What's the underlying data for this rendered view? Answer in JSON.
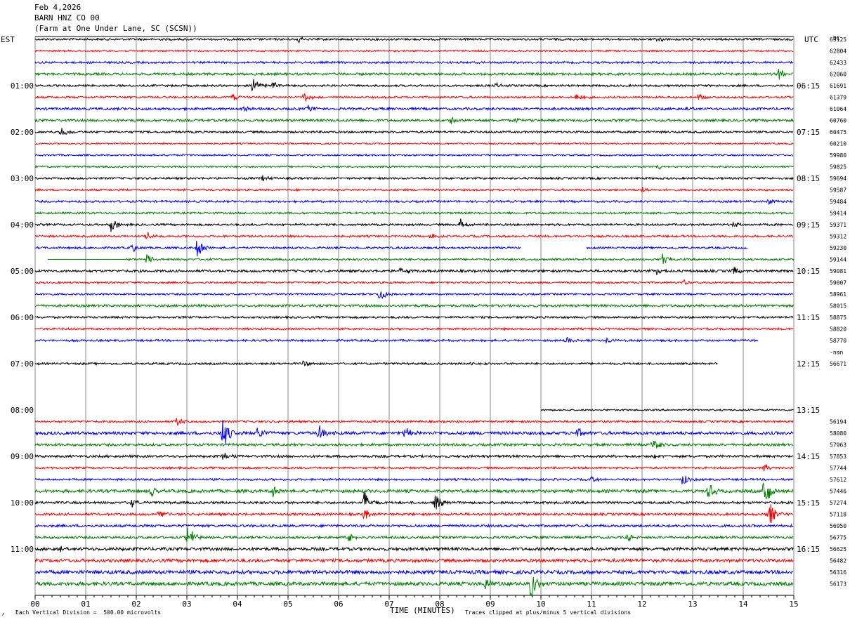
{
  "header": {
    "date": "Feb 4,2026",
    "station": "BARN HNZ CO 00",
    "location": "(Farm at One Under Lane, SC (SCSN))"
  },
  "left_label": "EST",
  "right_label": "UTC",
  "dc_label": "DC",
  "footer": {
    "division": "Each Vertical Division =  500.00 microvolts",
    "xlabel": "TIME (MINUTES)",
    "clip_note": "Traces clipped at plus/minus 5 vertical divisions"
  },
  "chart_data": {
    "type": "line",
    "title": "BARN HNZ CO 00",
    "xlabel": "TIME (MINUTES)",
    "xlim": [
      0,
      15
    ],
    "x_ticks": [
      "00",
      "01",
      "02",
      "03",
      "04",
      "05",
      "06",
      "07",
      "08",
      "09",
      "10",
      "11",
      "12",
      "13",
      "14",
      "15"
    ],
    "trace_colors": [
      "#000000",
      "#ff0000",
      "#0000ff",
      "#008000"
    ],
    "left_time_labels": [
      "01:00",
      "02:00",
      "03:00",
      "04:00",
      "05:00",
      "06:00",
      "07:00",
      "08:00",
      "09:00",
      "10:00",
      "11:00"
    ],
    "right_time_labels": [
      "06:15",
      "07:15",
      "08:15",
      "09:15",
      "10:15",
      "11:15",
      "12:15",
      "13:15",
      "14:15",
      "15:15",
      "16:15"
    ],
    "traces": [
      {
        "dc": "63125",
        "color": "#000000",
        "start": 0,
        "end": 15,
        "noise": 1.0,
        "events": [
          [
            5.2,
            2
          ],
          [
            12.3,
            2
          ]
        ]
      },
      {
        "dc": "62804",
        "color": "#ff0000",
        "start": 0,
        "end": 15,
        "noise": 0.8,
        "events": []
      },
      {
        "dc": "62433",
        "color": "#0000ff",
        "start": 0,
        "end": 15,
        "noise": 1.0,
        "events": []
      },
      {
        "dc": "62060",
        "color": "#008000",
        "start": 0,
        "end": 15,
        "noise": 1.2,
        "events": [
          [
            14.7,
            4
          ]
        ]
      },
      {
        "dc": "61691",
        "color": "#000000",
        "start": 0,
        "end": 15,
        "noise": 1.0,
        "events": [
          [
            4.3,
            6
          ],
          [
            4.7,
            3
          ],
          [
            9.1,
            2
          ]
        ]
      },
      {
        "dc": "61379",
        "color": "#ff0000",
        "start": 0,
        "end": 15,
        "noise": 1.0,
        "events": [
          [
            5.3,
            4
          ],
          [
            3.9,
            3
          ],
          [
            10.7,
            3
          ],
          [
            13.1,
            2
          ]
        ]
      },
      {
        "dc": "61064",
        "color": "#0000ff",
        "start": 0,
        "end": 15,
        "noise": 1.2,
        "events": [
          [
            5.4,
            3
          ],
          [
            4.1,
            2
          ],
          [
            12.9,
            3
          ]
        ]
      },
      {
        "dc": "60760",
        "color": "#008000",
        "start": 0,
        "end": 15,
        "noise": 1.2,
        "events": [
          [
            8.2,
            3
          ],
          [
            9.5,
            2
          ]
        ]
      },
      {
        "dc": "60475",
        "color": "#000000",
        "start": 0,
        "end": 15,
        "noise": 1.0,
        "events": [
          [
            0.5,
            4
          ]
        ]
      },
      {
        "dc": "60210",
        "color": "#ff0000",
        "start": 0,
        "end": 15,
        "noise": 0.7,
        "events": []
      },
      {
        "dc": "59980",
        "color": "#0000ff",
        "start": 0,
        "end": 15,
        "noise": 0.8,
        "events": []
      },
      {
        "dc": "59825",
        "color": "#008000",
        "start": 0,
        "end": 15,
        "noise": 0.9,
        "events": [
          [
            12.3,
            2
          ]
        ]
      },
      {
        "dc": "59694",
        "color": "#000000",
        "start": 0,
        "end": 15,
        "noise": 1.0,
        "events": [
          [
            4.5,
            2
          ]
        ]
      },
      {
        "dc": "59587",
        "color": "#ff0000",
        "start": 0,
        "end": 15,
        "noise": 1.0,
        "events": [
          [
            12.0,
            2
          ]
        ]
      },
      {
        "dc": "59484",
        "color": "#0000ff",
        "start": 0,
        "end": 15,
        "noise": 1.0,
        "events": [
          [
            14.5,
            2
          ]
        ]
      },
      {
        "dc": "59414",
        "color": "#008000",
        "start": 0,
        "end": 15,
        "noise": 1.0,
        "events": []
      },
      {
        "dc": "59371",
        "color": "#000000",
        "start": 0,
        "end": 15,
        "noise": 1.0,
        "events": [
          [
            1.5,
            5
          ],
          [
            8.4,
            5
          ],
          [
            13.8,
            2
          ]
        ]
      },
      {
        "dc": "59312",
        "color": "#ff0000",
        "start": 0,
        "end": 15,
        "noise": 1.0,
        "events": [
          [
            2.2,
            3
          ],
          [
            7.8,
            2
          ]
        ]
      },
      {
        "dc": "59230",
        "color": "#0000ff",
        "start": 0,
        "end": 15,
        "noise": 1.0,
        "events": [
          [
            3.2,
            7
          ],
          [
            1.9,
            3
          ],
          [
            14.2,
            3
          ]
        ],
        "gaps": [
          [
            9.6,
            10.9
          ],
          [
            14.1,
            15
          ]
        ]
      },
      {
        "dc": "59144",
        "color": "#008000",
        "start": 0.25,
        "end": 15,
        "noise": 1.0,
        "events": [
          [
            2.2,
            3
          ],
          [
            12.4,
            4
          ]
        ],
        "quiet": [
          0.25,
          1.8
        ]
      },
      {
        "dc": "59081",
        "color": "#000000",
        "start": 0,
        "end": 15,
        "noise": 1.2,
        "events": [
          [
            12.3,
            3
          ],
          [
            13.8,
            4
          ],
          [
            7.2,
            2
          ]
        ]
      },
      {
        "dc": "59007",
        "color": "#ff0000",
        "start": 0,
        "end": 15,
        "noise": 0.9,
        "events": [
          [
            12.8,
            2
          ]
        ]
      },
      {
        "dc": "58961",
        "color": "#0000ff",
        "start": 0,
        "end": 15,
        "noise": 0.9,
        "events": [
          [
            6.8,
            5
          ]
        ]
      },
      {
        "dc": "58915",
        "color": "#008000",
        "start": 0,
        "end": 15,
        "noise": 1.2,
        "events": []
      },
      {
        "dc": "58875",
        "color": "#000000",
        "start": 0,
        "end": 15,
        "noise": 1.0,
        "events": []
      },
      {
        "dc": "58820",
        "color": "#ff0000",
        "start": 0,
        "end": 15,
        "noise": 1.0,
        "events": []
      },
      {
        "dc": "58770",
        "color": "#0000ff",
        "start": 0,
        "end": 14.3,
        "noise": 1.0,
        "events": [
          [
            10.5,
            2
          ],
          [
            11.3,
            2
          ]
        ]
      },
      {
        "dc": "-nan",
        "color": "#008000",
        "start": 0,
        "end": 0,
        "noise": 0,
        "events": []
      },
      {
        "dc": "56671",
        "color": "#000000",
        "start": 0,
        "end": 13.5,
        "noise": 1.0,
        "events": [
          [
            5.3,
            2
          ],
          [
            8.6,
            2
          ]
        ]
      },
      {
        "dc": "",
        "color": "#ff0000",
        "start": 0,
        "end": 0,
        "noise": 0,
        "events": []
      },
      {
        "dc": "",
        "color": "#0000ff",
        "start": 0,
        "end": 0,
        "noise": 0,
        "events": []
      },
      {
        "dc": "",
        "color": "#008000",
        "start": 0,
        "end": 0,
        "noise": 0,
        "events": []
      },
      {
        "dc": "",
        "color": "#000000",
        "start": 10.0,
        "end": 15,
        "noise": 0.8,
        "events": []
      },
      {
        "dc": "56194",
        "color": "#ff0000",
        "start": 0,
        "end": 15,
        "noise": 1.0,
        "events": [
          [
            2.8,
            3
          ]
        ]
      },
      {
        "dc": "58080",
        "color": "#0000ff",
        "start": 0,
        "end": 15,
        "noise": 1.5,
        "events": [
          [
            3.7,
            12
          ],
          [
            4.4,
            5
          ],
          [
            5.6,
            6
          ],
          [
            7.3,
            4
          ],
          [
            10.7,
            4
          ]
        ]
      },
      {
        "dc": "57963",
        "color": "#008000",
        "start": 0,
        "end": 15,
        "noise": 1.2,
        "events": [
          [
            12.2,
            5
          ]
        ]
      },
      {
        "dc": "57853",
        "color": "#000000",
        "start": 0,
        "end": 15,
        "noise": 1.2,
        "events": [
          [
            3.7,
            3
          ],
          [
            12.2,
            2
          ]
        ]
      },
      {
        "dc": "57744",
        "color": "#ff0000",
        "start": 0,
        "end": 15,
        "noise": 1.0,
        "events": [
          [
            14.4,
            3
          ]
        ]
      },
      {
        "dc": "57612",
        "color": "#0000ff",
        "start": 0,
        "end": 15,
        "noise": 1.0,
        "events": [
          [
            12.8,
            4
          ],
          [
            11.0,
            2
          ]
        ]
      },
      {
        "dc": "57446",
        "color": "#008000",
        "start": 0,
        "end": 15,
        "noise": 1.5,
        "events": [
          [
            2.3,
            6
          ],
          [
            4.7,
            4
          ],
          [
            13.3,
            6
          ],
          [
            14.4,
            14
          ]
        ]
      },
      {
        "dc": "57274",
        "color": "#000000",
        "start": 0,
        "end": 15,
        "noise": 1.2,
        "events": [
          [
            6.5,
            8
          ],
          [
            7.9,
            7
          ],
          [
            1.9,
            3
          ]
        ]
      },
      {
        "dc": "57118",
        "color": "#ff0000",
        "start": 0,
        "end": 15,
        "noise": 1.2,
        "events": [
          [
            2.4,
            4
          ],
          [
            6.5,
            4
          ],
          [
            14.5,
            10
          ]
        ]
      },
      {
        "dc": "56950",
        "color": "#0000ff",
        "start": 0,
        "end": 15,
        "noise": 1.2,
        "events": []
      },
      {
        "dc": "56775",
        "color": "#008000",
        "start": 0,
        "end": 15,
        "noise": 1.2,
        "events": [
          [
            3.0,
            9
          ],
          [
            6.2,
            4
          ],
          [
            11.7,
            3
          ]
        ]
      },
      {
        "dc": "56625",
        "color": "#000000",
        "start": 0,
        "end": 15,
        "noise": 1.5,
        "events": [
          [
            0.5,
            3
          ]
        ]
      },
      {
        "dc": "56482",
        "color": "#ff0000",
        "start": 0,
        "end": 15,
        "noise": 1.6,
        "events": []
      },
      {
        "dc": "56316",
        "color": "#0000ff",
        "start": 0,
        "end": 15,
        "noise": 1.8,
        "events": []
      },
      {
        "dc": "56173",
        "color": "#008000",
        "start": 0,
        "end": 15,
        "noise": 1.8,
        "events": [
          [
            9.8,
            12
          ],
          [
            8.9,
            5
          ]
        ]
      }
    ]
  }
}
